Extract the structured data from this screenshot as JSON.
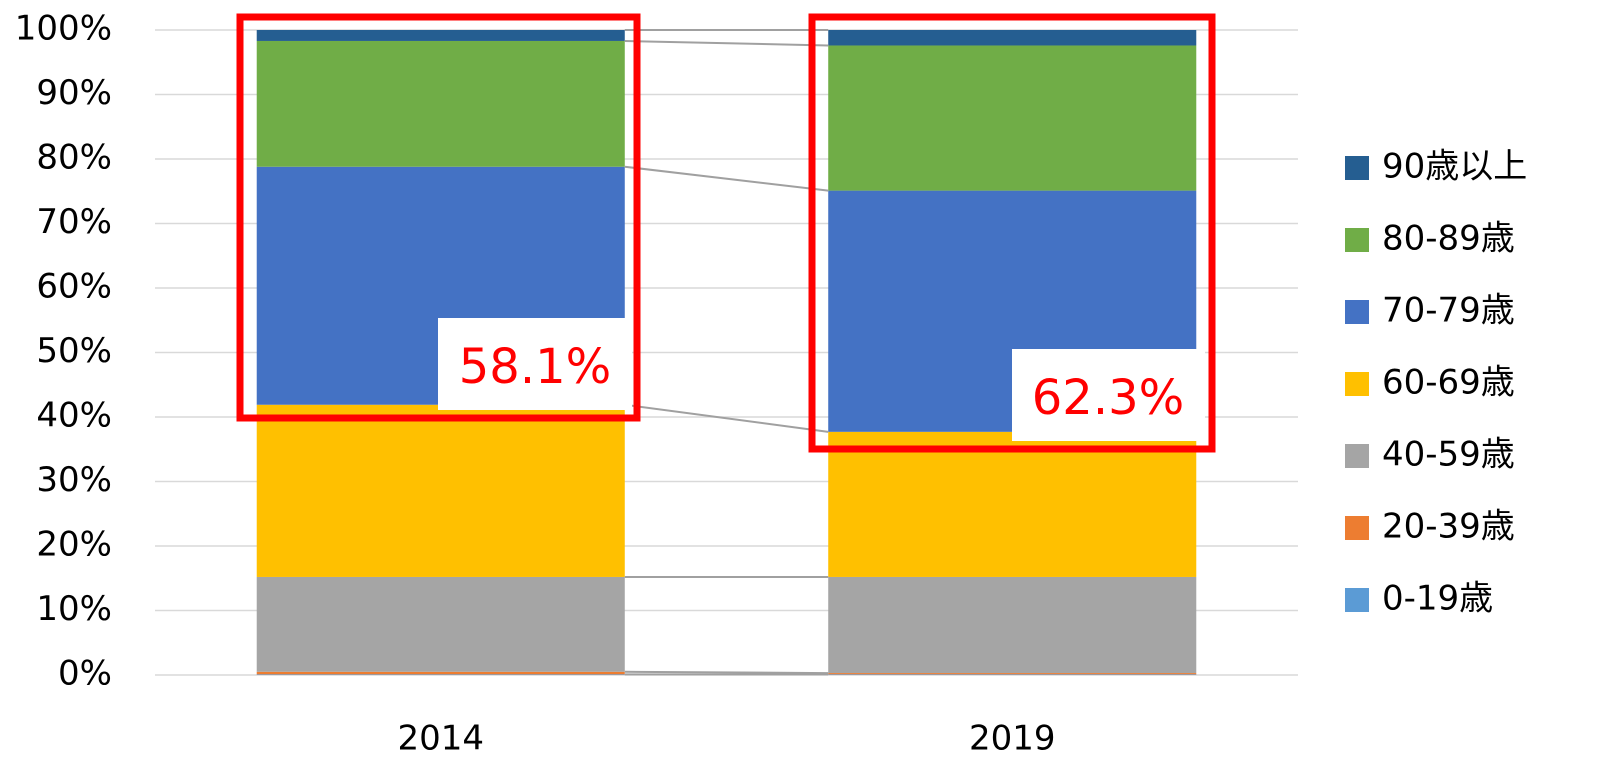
{
  "chart_data": {
    "type": "stacked_bar_100",
    "categories": [
      "2014",
      "2019"
    ],
    "series": [
      {
        "name": "0-19歳",
        "color": "#5b9bd5",
        "values": [
          0.1,
          0.1
        ]
      },
      {
        "name": "20-39歳",
        "color": "#ed7d31",
        "values": [
          0.4,
          0.2
        ]
      },
      {
        "name": "40-59歳",
        "color": "#a5a5a5",
        "values": [
          14.7,
          14.9
        ]
      },
      {
        "name": "60-69歳",
        "color": "#ffc000",
        "values": [
          26.7,
          22.5
        ]
      },
      {
        "name": "70-79歳",
        "color": "#4472c4",
        "values": [
          36.9,
          37.4
        ]
      },
      {
        "name": "80-89歳",
        "color": "#70ad47",
        "values": [
          19.5,
          22.5
        ]
      },
      {
        "name": "90歳以上",
        "color": "#255e91",
        "values": [
          1.7,
          2.4
        ]
      }
    ],
    "annotations": [
      "58.1%",
      "62.3%"
    ],
    "ylim": [
      0,
      100
    ],
    "yticks": [
      {
        "value": 0,
        "label": "0%"
      },
      {
        "value": 10,
        "label": "10%"
      },
      {
        "value": 20,
        "label": "20%"
      },
      {
        "value": 30,
        "label": "30%"
      },
      {
        "value": 40,
        "label": "40%"
      },
      {
        "value": 50,
        "label": "50%"
      },
      {
        "value": 60,
        "label": "60%"
      },
      {
        "value": 70,
        "label": "70%"
      },
      {
        "value": 80,
        "label": "80%"
      },
      {
        "value": 90,
        "label": "90%"
      },
      {
        "value": 100,
        "label": "100%"
      }
    ],
    "grid": true,
    "legend": "right"
  }
}
